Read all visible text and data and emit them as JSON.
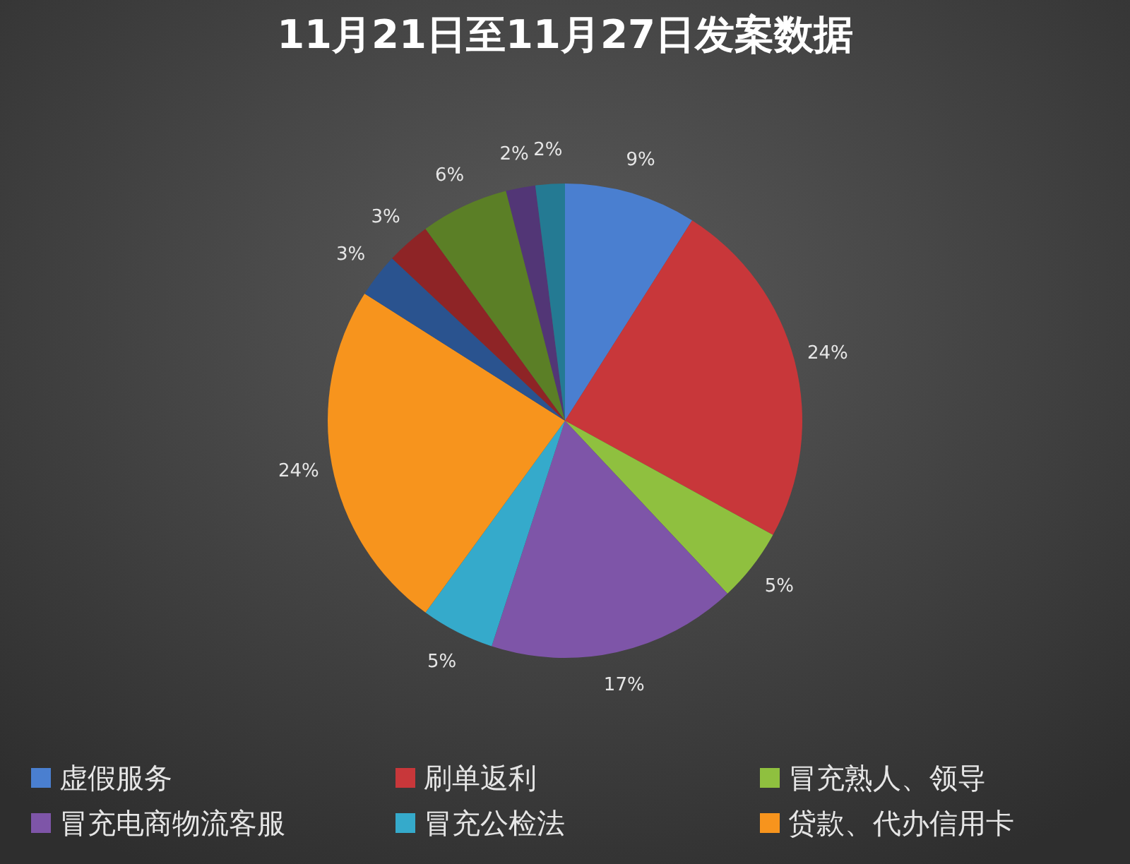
{
  "chart_data": {
    "type": "pie",
    "title": "11月21日至11月27日发案数据",
    "categories": [
      "虚假服务",
      "刷单返利",
      "冒充熟人、领导",
      "冒充电商物流客服",
      "冒充公检法",
      "贷款、代办信用卡",
      null,
      null,
      null,
      null,
      null
    ],
    "values": [
      9,
      24,
      5,
      17,
      5,
      24,
      3,
      3,
      6,
      2,
      2
    ],
    "value_labels": [
      "9%",
      "24%",
      "5%",
      "17%",
      "5%",
      "24%",
      "3%",
      "3%",
      "6%",
      "2%",
      "2%"
    ],
    "colors": [
      "#4a7fd0",
      "#c8373a",
      "#8fc03f",
      "#7e55a8",
      "#35aacb",
      "#f7941d",
      "#2a538f",
      "#8e2426",
      "#5b7f26",
      "#523676",
      "#247a93"
    ],
    "legend": "bottom"
  }
}
